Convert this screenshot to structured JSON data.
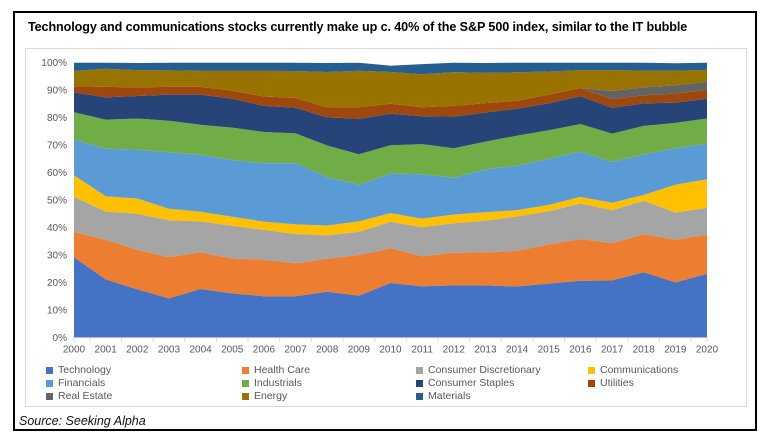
{
  "header": {
    "title": "Technology and communications stocks currently make up c. 40% of the S&P 500 index, similar to the IT bubble"
  },
  "footer": {
    "source": "Source: Seeking Alpha"
  },
  "chart_data": {
    "type": "area",
    "stacked": true,
    "unit": "%",
    "title": "",
    "xlabel": "",
    "ylabel": "",
    "ylim": [
      0,
      100
    ],
    "grid": false,
    "legend_position": "bottom",
    "x": [
      2000,
      2001,
      2002,
      2003,
      2004,
      2005,
      2006,
      2007,
      2008,
      2009,
      2010,
      2011,
      2012,
      2013,
      2014,
      2015,
      2016,
      2017,
      2018,
      2019,
      2020
    ],
    "y_ticks": [
      "0%",
      "10%",
      "20%",
      "30%",
      "40%",
      "50%",
      "60%",
      "70%",
      "80%",
      "90%",
      "100%"
    ],
    "axis_color": "#d9d9d9",
    "label_color": "#595959",
    "series": [
      {
        "name": "Technology",
        "color": "#4472C4",
        "values": [
          29.2,
          21.2,
          17.6,
          14.3,
          17.7,
          16.1,
          15.1,
          15.1,
          16.7,
          15.3,
          19.9,
          18.7,
          19.0,
          19.0,
          18.6,
          19.7,
          20.7,
          20.8,
          23.8,
          20.1,
          23.2
        ]
      },
      {
        "name": "Health Care",
        "color": "#ED7D31",
        "values": [
          9.3,
          14.4,
          14.4,
          15.0,
          13.3,
          12.7,
          13.3,
          12.0,
          12.0,
          14.8,
          12.6,
          10.9,
          11.9,
          12.0,
          13.0,
          14.2,
          15.2,
          13.6,
          13.8,
          15.5,
          14.2
        ]
      },
      {
        "name": "Consumer Discretionary",
        "color": "#A5A5A5",
        "values": [
          12.7,
          10.3,
          13.1,
          13.4,
          11.3,
          11.9,
          10.8,
          10.6,
          8.5,
          8.4,
          9.6,
          10.6,
          10.7,
          11.5,
          12.5,
          12.1,
          12.9,
          12.0,
          12.2,
          9.9,
          9.8
        ]
      },
      {
        "name": "Communications",
        "color": "#FFC000",
        "values": [
          7.9,
          5.5,
          5.5,
          4.2,
          3.5,
          3.3,
          3.0,
          3.5,
          3.6,
          3.8,
          3.2,
          3.1,
          3.2,
          3.1,
          2.3,
          2.3,
          2.4,
          2.7,
          2.1,
          10.1,
          10.4
        ]
      },
      {
        "name": "Financials",
        "color": "#5B9BD5",
        "values": [
          13.0,
          17.3,
          17.8,
          20.5,
          20.7,
          20.6,
          21.3,
          22.3,
          17.6,
          13.3,
          14.4,
          16.1,
          13.4,
          15.6,
          16.2,
          16.7,
          16.5,
          14.8,
          14.8,
          13.3,
          13.0
        ]
      },
      {
        "name": "Industrials",
        "color": "#70AD47",
        "values": [
          9.9,
          10.6,
          11.3,
          11.5,
          10.9,
          11.8,
          11.3,
          10.8,
          11.5,
          11.1,
          10.3,
          11.0,
          10.7,
          10.1,
          10.9,
          10.4,
          10.0,
          10.3,
          10.3,
          9.2,
          9.1
        ]
      },
      {
        "name": "Consumer Staples",
        "color": "#264478",
        "values": [
          7.2,
          8.1,
          8.2,
          9.5,
          11.0,
          10.5,
          9.5,
          9.3,
          10.2,
          12.9,
          11.4,
          10.1,
          11.5,
          10.6,
          9.8,
          9.8,
          10.1,
          9.4,
          8.2,
          7.4,
          7.2
        ]
      },
      {
        "name": "Utilities",
        "color": "#9E480E",
        "values": [
          2.2,
          3.8,
          3.1,
          2.8,
          2.8,
          2.9,
          3.4,
          3.6,
          3.6,
          4.2,
          3.7,
          3.3,
          3.9,
          3.4,
          2.9,
          3.2,
          3.0,
          3.2,
          2.9,
          3.3,
          3.3
        ]
      },
      {
        "name": "Real Estate",
        "color": "#636363",
        "values": [
          0,
          0,
          0,
          0,
          0,
          0,
          0,
          0,
          0,
          0,
          0,
          0,
          0,
          0,
          0,
          0,
          0,
          2.9,
          2.9,
          3.0,
          2.9
        ]
      },
      {
        "name": "Energy",
        "color": "#997300",
        "values": [
          5.6,
          6.6,
          6.3,
          6.0,
          5.8,
          7.2,
          9.3,
          9.8,
          12.9,
          13.3,
          11.5,
          12.0,
          12.3,
          11.0,
          10.3,
          8.4,
          6.5,
          7.6,
          6.1,
          5.3,
          4.3
        ]
      },
      {
        "name": "Materials",
        "color": "#255E91",
        "values": [
          3.0,
          2.3,
          2.6,
          2.8,
          3.0,
          3.1,
          3.0,
          3.0,
          3.3,
          2.9,
          2.3,
          3.7,
          3.5,
          3.6,
          3.5,
          3.2,
          2.8,
          2.8,
          3.0,
          2.7,
          2.7
        ]
      }
    ]
  }
}
